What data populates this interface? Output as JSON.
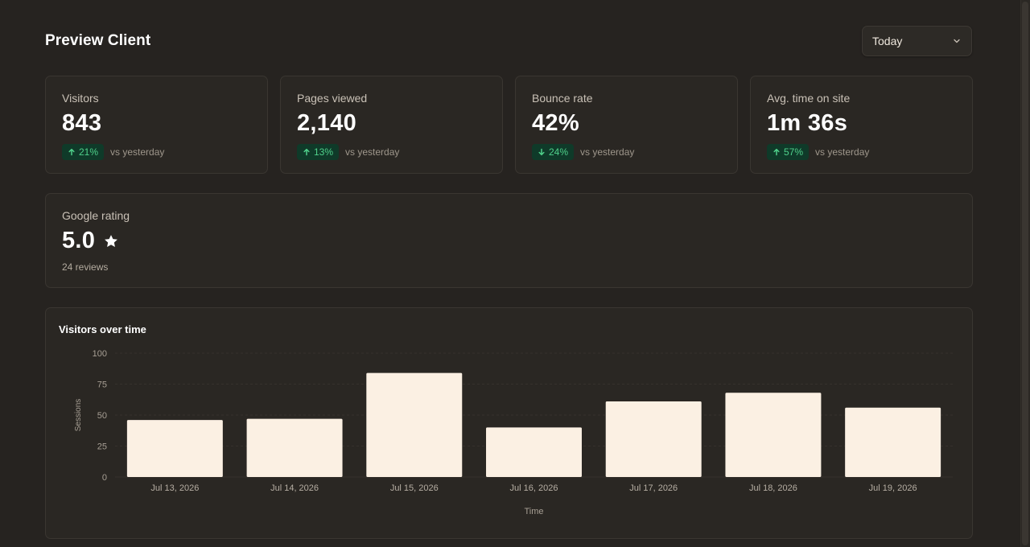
{
  "header": {
    "title": "Preview Client",
    "period_select": {
      "value": "Today"
    }
  },
  "stats": [
    {
      "label": "Visitors",
      "value": "843",
      "delta": "21%",
      "direction": "up",
      "suffix": "vs yesterday"
    },
    {
      "label": "Pages viewed",
      "value": "2,140",
      "delta": "13%",
      "direction": "up",
      "suffix": "vs yesterday"
    },
    {
      "label": "Bounce rate",
      "value": "42%",
      "delta": "24%",
      "direction": "down",
      "suffix": "vs yesterday"
    },
    {
      "label": "Avg. time on site",
      "value": "1m 36s",
      "delta": "57%",
      "direction": "up",
      "suffix": "vs yesterday"
    }
  ],
  "rating": {
    "label": "Google rating",
    "value": "5.0",
    "icon": "star-icon",
    "reviews": "24 reviews"
  },
  "colors": {
    "background": "#262320",
    "card": "#2a2723",
    "bar": "#fbf0e3",
    "positive_text": "#4fd08a",
    "positive_bg": "#0f3a29"
  },
  "chart_data": {
    "type": "bar",
    "title": "Visitors over time",
    "xlabel": "Time",
    "ylabel": "Sessions",
    "categories": [
      "Jul 13, 2026",
      "Jul 14, 2026",
      "Jul 15, 2026",
      "Jul 16, 2026",
      "Jul 17, 2026",
      "Jul 18, 2026",
      "Jul 19, 2026"
    ],
    "values": [
      46,
      47,
      84,
      40,
      61,
      68,
      56
    ],
    "ylim": [
      0,
      100
    ],
    "yticks": [
      0,
      25,
      50,
      75,
      100
    ],
    "grid": true,
    "legend": "none"
  }
}
